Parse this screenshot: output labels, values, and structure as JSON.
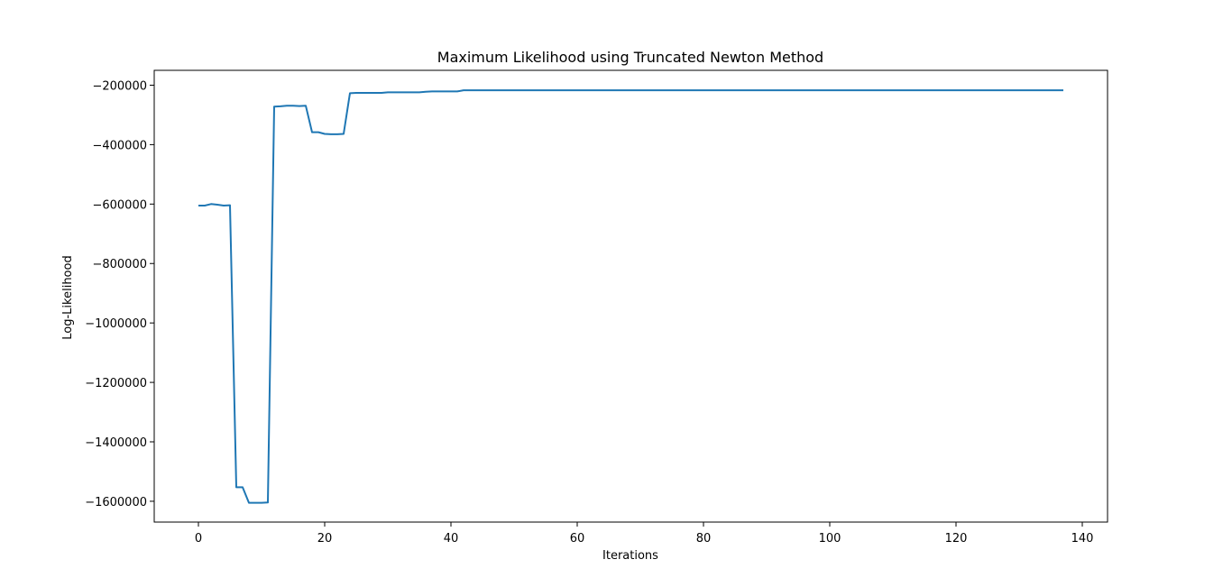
{
  "chart_data": {
    "type": "line",
    "title": "Maximum Likelihood using Truncated Newton Method",
    "xlabel": "Iterations",
    "ylabel": "Log-Likelihood",
    "xlim": [
      -7,
      144
    ],
    "ylim": [
      -1670000,
      -150000
    ],
    "xticks": [
      0,
      20,
      40,
      60,
      80,
      100,
      120,
      140
    ],
    "yticks": [
      -200000,
      -400000,
      -600000,
      -800000,
      -1000000,
      -1200000,
      -1400000,
      -1600000
    ],
    "xtick_labels": [
      "0",
      "20",
      "40",
      "60",
      "80",
      "100",
      "120",
      "140"
    ],
    "ytick_labels": [
      "−200000",
      "−400000",
      "−600000",
      "−800000",
      "−1000000",
      "−1200000",
      "−1400000",
      "−1600000"
    ],
    "grid": false,
    "legend": "none",
    "series": [
      {
        "color": "#1f77b4",
        "x": [
          0,
          1,
          2,
          3,
          4,
          5,
          6,
          7,
          8,
          9,
          10,
          11,
          12,
          13,
          14,
          15,
          16,
          17,
          18,
          19,
          20,
          21,
          22,
          23,
          24,
          25,
          26,
          27,
          28,
          29,
          30,
          31,
          32,
          33,
          34,
          35,
          36,
          37,
          38,
          39,
          40,
          41,
          42,
          43,
          50,
          60,
          70,
          80,
          90,
          100,
          110,
          120,
          130,
          137
        ],
        "y": [
          -605000,
          -605000,
          -600000,
          -602000,
          -605000,
          -604000,
          -1553000,
          -1553000,
          -1605000,
          -1605000,
          -1605000,
          -1604000,
          -272000,
          -271000,
          -269000,
          -269000,
          -270000,
          -269000,
          -358000,
          -358000,
          -364000,
          -365000,
          -365000,
          -364000,
          -227000,
          -226000,
          -226000,
          -226000,
          -226000,
          -226000,
          -224000,
          -224000,
          -224000,
          -224000,
          -224000,
          -224000,
          -222000,
          -221000,
          -221000,
          -221000,
          -221000,
          -221000,
          -217000,
          -217000,
          -217000,
          -217000,
          -217000,
          -217000,
          -217000,
          -217000,
          -217000,
          -217000,
          -217000,
          -217000
        ]
      }
    ]
  }
}
